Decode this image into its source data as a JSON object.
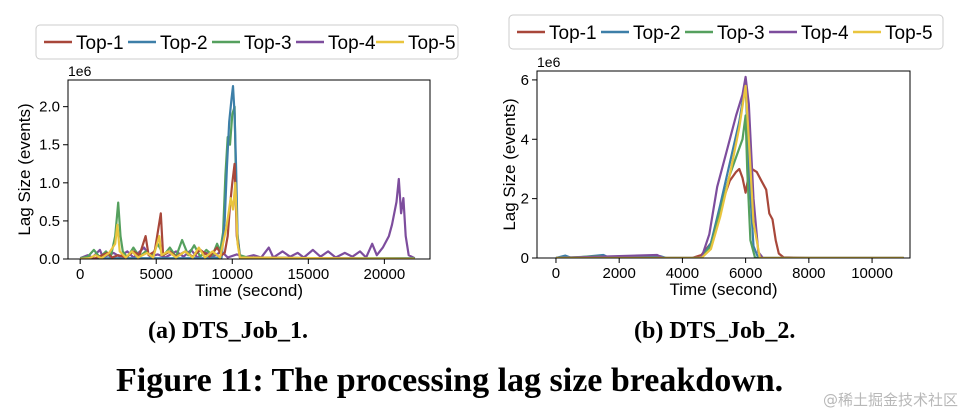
{
  "figure_caption": "Figure 11: The processing lag size breakdown.",
  "watermark": "@稀土掘金技术社区",
  "colors": {
    "Top-1": "#a8473a",
    "Top-2": "#3d7fa8",
    "Top-3": "#55a05e",
    "Top-4": "#7d4d9d",
    "Top-5": "#e9c53e"
  },
  "chart_data": [
    {
      "type": "line",
      "title": "",
      "caption": "(a) DTS_Job_1.",
      "xlabel": "Time (second)",
      "ylabel": "Lag Size (events)",
      "yoffset": "1e6",
      "xlim": [
        -800,
        23000
      ],
      "ylim": [
        0,
        2.35
      ],
      "xticks": [
        0,
        5000,
        10000,
        15000,
        20000
      ],
      "xtick_labels": [
        "0",
        "5000",
        "10000",
        "15000",
        "20000"
      ],
      "yticks": [
        0,
        0.5,
        1.0,
        1.5,
        2.0
      ],
      "ytick_labels": [
        "0.0",
        "0.5",
        "1.0",
        "1.5",
        "2.0"
      ],
      "legend": [
        "Top-1",
        "Top-2",
        "Top-3",
        "Top-4",
        "Top-5"
      ],
      "legend_position": "top",
      "series": [
        {
          "name": "Top-4",
          "points": [
            [
              0,
              0.01
            ],
            [
              500,
              0.05
            ],
            [
              800,
              0.02
            ],
            [
              1300,
              0.12
            ],
            [
              1500,
              0.02
            ],
            [
              2200,
              0.08
            ],
            [
              2600,
              0.03
            ],
            [
              3100,
              0.1
            ],
            [
              3500,
              0.02
            ],
            [
              4200,
              0.15
            ],
            [
              4600,
              0.03
            ],
            [
              5100,
              0.06
            ],
            [
              5600,
              0.02
            ],
            [
              6300,
              0.1
            ],
            [
              6800,
              0.03
            ],
            [
              7300,
              0.12
            ],
            [
              7700,
              0.02
            ],
            [
              8300,
              0.08
            ],
            [
              8700,
              0.03
            ],
            [
              9300,
              0.1
            ],
            [
              9700,
              0.02
            ],
            [
              10300,
              0.06
            ],
            [
              10800,
              0.02
            ],
            [
              11400,
              0.05
            ],
            [
              11900,
              0.02
            ],
            [
              12400,
              0.15
            ],
            [
              12700,
              0.02
            ],
            [
              13300,
              0.1
            ],
            [
              13800,
              0.03
            ],
            [
              14300,
              0.08
            ],
            [
              14700,
              0.02
            ],
            [
              15300,
              0.12
            ],
            [
              15800,
              0.03
            ],
            [
              16300,
              0.1
            ],
            [
              16800,
              0.02
            ],
            [
              17400,
              0.08
            ],
            [
              17900,
              0.03
            ],
            [
              18400,
              0.1
            ],
            [
              18800,
              0.02
            ],
            [
              19200,
              0.2
            ],
            [
              19500,
              0.05
            ],
            [
              19900,
              0.15
            ],
            [
              20300,
              0.3
            ],
            [
              20500,
              0.45
            ],
            [
              20800,
              0.75
            ],
            [
              20950,
              1.05
            ],
            [
              21100,
              0.6
            ],
            [
              21250,
              0.8
            ],
            [
              21400,
              0.3
            ],
            [
              21600,
              0.05
            ],
            [
              22000,
              0.01
            ]
          ]
        },
        {
          "name": "Top-3",
          "points": [
            [
              0,
              0.01
            ],
            [
              500,
              0.03
            ],
            [
              900,
              0.12
            ],
            [
              1300,
              0.02
            ],
            [
              1700,
              0.1
            ],
            [
              2000,
              0.02
            ],
            [
              2300,
              0.3
            ],
            [
              2500,
              0.74
            ],
            [
              2650,
              0.3
            ],
            [
              2800,
              0.1
            ],
            [
              3100,
              0.02
            ],
            [
              3500,
              0.15
            ],
            [
              3900,
              0.03
            ],
            [
              4300,
              0.1
            ],
            [
              4700,
              0.03
            ],
            [
              5100,
              0.2
            ],
            [
              5500,
              0.05
            ],
            [
              5900,
              0.15
            ],
            [
              6300,
              0.03
            ],
            [
              6700,
              0.25
            ],
            [
              7100,
              0.05
            ],
            [
              7500,
              0.18
            ],
            [
              7900,
              0.03
            ],
            [
              8300,
              0.12
            ],
            [
              8700,
              0.05
            ],
            [
              9000,
              0.2
            ],
            [
              9200,
              0.1
            ],
            [
              9400,
              0.35
            ],
            [
              9550,
              1.1
            ],
            [
              9700,
              1.6
            ],
            [
              9850,
              1.5
            ],
            [
              10000,
              1.9
            ],
            [
              10150,
              2.0
            ],
            [
              10300,
              0.4
            ],
            [
              10500,
              0.05
            ],
            [
              11000,
              0.02
            ],
            [
              12000,
              0.01
            ],
            [
              22000,
              0.01
            ]
          ]
        },
        {
          "name": "Top-2",
          "points": [
            [
              0,
              0.0
            ],
            [
              2000,
              0.01
            ],
            [
              4000,
              0.01
            ],
            [
              6000,
              0.01
            ],
            [
              8000,
              0.01
            ],
            [
              9300,
              0.02
            ],
            [
              9500,
              0.5
            ],
            [
              9650,
              1.2
            ],
            [
              9800,
              1.8
            ],
            [
              9950,
              2.1
            ],
            [
              10050,
              2.27
            ],
            [
              10150,
              1.9
            ],
            [
              10250,
              1.2
            ],
            [
              10350,
              0.3
            ],
            [
              10500,
              0.02
            ],
            [
              22000,
              0.0
            ]
          ]
        },
        {
          "name": "Top-1",
          "points": [
            [
              0,
              0.0
            ],
            [
              1000,
              0.01
            ],
            [
              1800,
              0.08
            ],
            [
              2100,
              0.02
            ],
            [
              2500,
              0.05
            ],
            [
              3000,
              0.02
            ],
            [
              3500,
              0.1
            ],
            [
              3900,
              0.05
            ],
            [
              4300,
              0.3
            ],
            [
              4500,
              0.05
            ],
            [
              4900,
              0.1
            ],
            [
              5300,
              0.6
            ],
            [
              5450,
              0.05
            ],
            [
              5900,
              0.1
            ],
            [
              6300,
              0.03
            ],
            [
              6900,
              0.1
            ],
            [
              7400,
              0.03
            ],
            [
              7900,
              0.12
            ],
            [
              8500,
              0.03
            ],
            [
              9000,
              0.15
            ],
            [
              9300,
              0.05
            ],
            [
              9500,
              0.08
            ],
            [
              9700,
              0.3
            ],
            [
              9850,
              0.7
            ],
            [
              10000,
              1.0
            ],
            [
              10150,
              1.25
            ],
            [
              10300,
              0.3
            ],
            [
              10500,
              0.02
            ],
            [
              22000,
              0.0
            ]
          ]
        },
        {
          "name": "Top-5",
          "points": [
            [
              0,
              0.0
            ],
            [
              600,
              0.01
            ],
            [
              1000,
              0.05
            ],
            [
              1400,
              0.01
            ],
            [
              1900,
              0.08
            ],
            [
              2300,
              0.2
            ],
            [
              2450,
              0.45
            ],
            [
              2600,
              0.1
            ],
            [
              3000,
              0.02
            ],
            [
              3400,
              0.1
            ],
            [
              3800,
              0.02
            ],
            [
              4400,
              0.08
            ],
            [
              4800,
              0.02
            ],
            [
              5200,
              0.3
            ],
            [
              5350,
              0.05
            ],
            [
              5800,
              0.1
            ],
            [
              6300,
              0.02
            ],
            [
              6900,
              0.1
            ],
            [
              7400,
              0.02
            ],
            [
              7800,
              0.15
            ],
            [
              8200,
              0.02
            ],
            [
              8700,
              0.1
            ],
            [
              9200,
              0.02
            ],
            [
              9600,
              0.4
            ],
            [
              9750,
              0.6
            ],
            [
              9900,
              0.8
            ],
            [
              10050,
              0.65
            ],
            [
              10200,
              1.0
            ],
            [
              10350,
              0.2
            ],
            [
              10500,
              0.02
            ],
            [
              22000,
              0.0
            ]
          ]
        }
      ]
    },
    {
      "type": "line",
      "title": "",
      "caption": "(b) DTS_Job_2.",
      "xlabel": "Time (second)",
      "ylabel": "Lag Size (events)",
      "yoffset": "1e6",
      "xlim": [
        -600,
        11200
      ],
      "ylim": [
        0,
        6.3
      ],
      "xticks": [
        0,
        2000,
        4000,
        6000,
        8000,
        10000
      ],
      "xtick_labels": [
        "0",
        "2000",
        "4000",
        "6000",
        "8000",
        "10000"
      ],
      "yticks": [
        0,
        2,
        4,
        6
      ],
      "ytick_labels": [
        "0",
        "2",
        "4",
        "6"
      ],
      "legend": [
        "Top-1",
        "Top-2",
        "Top-3",
        "Top-4",
        "Top-5"
      ],
      "legend_position": "top",
      "series": [
        {
          "name": "Top-1",
          "points": [
            [
              0,
              0.0
            ],
            [
              4300,
              0.0
            ],
            [
              4600,
              0.1
            ],
            [
              4900,
              0.5
            ],
            [
              5100,
              1.2
            ],
            [
              5300,
              2.0
            ],
            [
              5500,
              2.6
            ],
            [
              5700,
              2.9
            ],
            [
              5800,
              3.0
            ],
            [
              5900,
              2.7
            ],
            [
              6000,
              2.2
            ],
            [
              6100,
              2.8
            ],
            [
              6200,
              3.0
            ],
            [
              6350,
              2.9
            ],
            [
              6500,
              2.6
            ],
            [
              6650,
              2.3
            ],
            [
              6750,
              1.5
            ],
            [
              6850,
              1.3
            ],
            [
              6950,
              0.6
            ],
            [
              7050,
              0.15
            ],
            [
              7200,
              0.02
            ],
            [
              8000,
              0.0
            ],
            [
              11000,
              0.0
            ]
          ]
        },
        {
          "name": "Top-2",
          "points": [
            [
              0,
              0.0
            ],
            [
              300,
              0.08
            ],
            [
              500,
              0.0
            ],
            [
              1500,
              0.1
            ],
            [
              1700,
              0.0
            ],
            [
              3300,
              0.06
            ],
            [
              3500,
              0.0
            ],
            [
              4600,
              0.0
            ],
            [
              4900,
              0.5
            ],
            [
              5200,
              1.8
            ],
            [
              5500,
              3.2
            ],
            [
              5800,
              4.6
            ],
            [
              6000,
              5.9
            ],
            [
              6100,
              3.0
            ],
            [
              6250,
              0.4
            ],
            [
              6400,
              0.0
            ],
            [
              11000,
              0.0
            ]
          ]
        },
        {
          "name": "Top-3",
          "points": [
            [
              0,
              0.0
            ],
            [
              1400,
              0.06
            ],
            [
              1600,
              0.0
            ],
            [
              4600,
              0.0
            ],
            [
              4900,
              0.4
            ],
            [
              5200,
              1.6
            ],
            [
              5500,
              2.8
            ],
            [
              5700,
              3.4
            ],
            [
              5900,
              4.0
            ],
            [
              6000,
              4.8
            ],
            [
              6050,
              3.0
            ],
            [
              6150,
              0.6
            ],
            [
              6300,
              0.0
            ],
            [
              11000,
              0.0
            ]
          ]
        },
        {
          "name": "Top-4",
          "points": [
            [
              0,
              0.0
            ],
            [
              3200,
              0.1
            ],
            [
              3400,
              0.0
            ],
            [
              4600,
              0.0
            ],
            [
              4850,
              0.8
            ],
            [
              5100,
              2.4
            ],
            [
              5400,
              3.6
            ],
            [
              5700,
              4.8
            ],
            [
              5900,
              5.5
            ],
            [
              6000,
              6.1
            ],
            [
              6100,
              5.2
            ],
            [
              6250,
              2.0
            ],
            [
              6400,
              0.2
            ],
            [
              6550,
              0.0
            ],
            [
              11000,
              0.0
            ]
          ]
        },
        {
          "name": "Top-5",
          "points": [
            [
              0,
              0.0
            ],
            [
              4600,
              0.0
            ],
            [
              4900,
              0.3
            ],
            [
              5200,
              1.4
            ],
            [
              5500,
              2.8
            ],
            [
              5800,
              4.4
            ],
            [
              6000,
              5.8
            ],
            [
              6100,
              4.0
            ],
            [
              6250,
              1.2
            ],
            [
              6450,
              0.0
            ],
            [
              11000,
              0.0
            ]
          ]
        }
      ]
    }
  ]
}
